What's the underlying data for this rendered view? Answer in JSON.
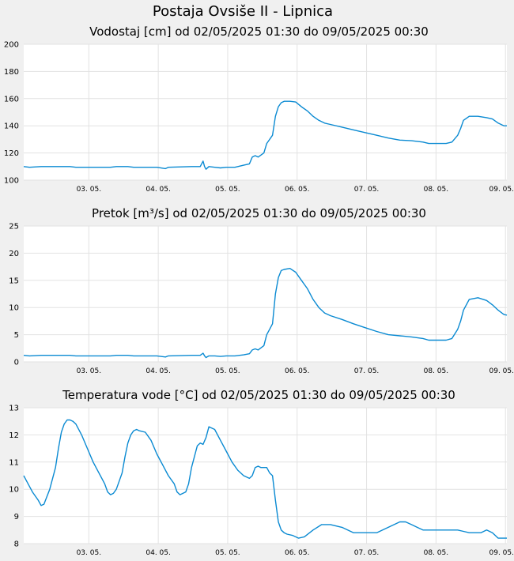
{
  "page": {
    "title": "Postaja Ovsiše II - Lipnica"
  },
  "chart_data": [
    {
      "type": "line",
      "title": "Vodostaj [cm] od 02/05/2025 01:30 do 09/05/2025 00:30",
      "xlabel": "",
      "ylabel": "",
      "ylim": [
        100,
        200
      ],
      "yticks": [
        100,
        120,
        140,
        160,
        180,
        200
      ],
      "xlim": [
        0,
        167
      ],
      "xtick_positions": [
        22.5,
        46.5,
        70.5,
        94.5,
        118.5,
        142.5,
        166.5
      ],
      "xtick_labels": [
        "03. 05.",
        "04. 05.",
        "05. 05.",
        "06. 05.",
        "07. 05.",
        "08. 05.",
        "09. 05."
      ],
      "grid": true,
      "series": [
        {
          "color": "#0a8ad2",
          "x": [
            0,
            2,
            6,
            16,
            18,
            30,
            32,
            36,
            38,
            46,
            49,
            50,
            58,
            61,
            62,
            62.5,
            63,
            64,
            66,
            68,
            70,
            73,
            76,
            78,
            79,
            80,
            81,
            83,
            84,
            85,
            86,
            87,
            88,
            89,
            90,
            92,
            94,
            96,
            98,
            100,
            102,
            104,
            106,
            110,
            114,
            118,
            122,
            126,
            130,
            134,
            138,
            140,
            143,
            146,
            148,
            150,
            151,
            152,
            154,
            157,
            160,
            162,
            164,
            166,
            167
          ],
          "y": [
            110,
            109.5,
            110,
            110,
            109.5,
            109.5,
            110,
            110,
            109.5,
            109.5,
            108.5,
            109.5,
            110,
            110,
            114,
            110,
            108,
            110,
            109.5,
            109,
            109.5,
            109.5,
            111,
            112,
            117,
            118,
            117,
            120,
            127,
            130,
            133,
            147,
            154,
            157,
            158,
            158,
            157.5,
            154,
            151,
            147,
            144,
            142,
            141,
            139,
            137,
            135,
            133,
            131,
            129.5,
            129,
            128,
            127,
            127,
            127,
            128,
            133,
            138,
            144,
            147,
            147,
            146,
            145,
            142,
            140,
            140
          ]
        }
      ]
    },
    {
      "type": "line",
      "title": "Pretok [m³/s] od 02/05/2025 01:30 do 09/05/2025 00:30",
      "xlabel": "",
      "ylabel": "",
      "ylim": [
        0,
        25
      ],
      "yticks": [
        0,
        5,
        10,
        15,
        20,
        25
      ],
      "xlim": [
        0,
        167
      ],
      "xtick_positions": [
        22.5,
        46.5,
        70.5,
        94.5,
        118.5,
        142.5,
        166.5
      ],
      "xtick_labels": [
        "03. 05.",
        "04. 05.",
        "05. 05.",
        "06. 05.",
        "07. 05.",
        "08. 05.",
        "09. 05."
      ],
      "grid": true,
      "series": [
        {
          "color": "#0a8ad2",
          "x": [
            0,
            2,
            6,
            16,
            18,
            30,
            32,
            36,
            38,
            46,
            49,
            50,
            58,
            61,
            62,
            62.5,
            63,
            64,
            66,
            68,
            70,
            73,
            76,
            78,
            79,
            80,
            81,
            83,
            84,
            85,
            86,
            87,
            88,
            89,
            90,
            92,
            94,
            96,
            98,
            100,
            102,
            104,
            106,
            110,
            114,
            118,
            122,
            126,
            130,
            134,
            138,
            140,
            143,
            146,
            148,
            150,
            151,
            152,
            154,
            157,
            160,
            162,
            164,
            166,
            167
          ],
          "y": [
            1.2,
            1.1,
            1.2,
            1.2,
            1.1,
            1.1,
            1.2,
            1.2,
            1.1,
            1.1,
            0.9,
            1.1,
            1.2,
            1.2,
            1.6,
            1.1,
            0.8,
            1.1,
            1.1,
            1.0,
            1.1,
            1.1,
            1.3,
            1.5,
            2.2,
            2.4,
            2.2,
            3.0,
            5.0,
            6.0,
            7.0,
            12.5,
            15.5,
            16.8,
            17.0,
            17.2,
            16.5,
            15.0,
            13.5,
            11.5,
            10.0,
            9.0,
            8.5,
            7.8,
            7.0,
            6.3,
            5.6,
            5.0,
            4.8,
            4.6,
            4.3,
            4.0,
            4.0,
            4.0,
            4.3,
            6.0,
            7.5,
            9.5,
            11.5,
            11.8,
            11.3,
            10.5,
            9.5,
            8.7,
            8.6
          ]
        }
      ]
    },
    {
      "type": "line",
      "title": "Temperatura vode [°C] od 02/05/2025 01:30 do 09/05/2025 00:30",
      "xlabel": "",
      "ylabel": "",
      "ylim": [
        8,
        13
      ],
      "yticks": [
        8,
        9,
        10,
        11,
        12,
        13
      ],
      "xlim": [
        0,
        167
      ],
      "xtick_positions": [
        22.5,
        46.5,
        70.5,
        94.5,
        118.5,
        142.5,
        166.5
      ],
      "xtick_labels": [
        "03. 05.",
        "04. 05.",
        "05. 05.",
        "06. 05.",
        "07. 05.",
        "08. 05.",
        "09. 05."
      ],
      "grid": true,
      "series": [
        {
          "color": "#0a8ad2",
          "x": [
            0,
            1,
            3,
            5,
            6,
            7,
            9,
            11,
            12,
            13,
            14,
            15,
            16,
            17,
            18,
            20,
            22,
            24,
            26,
            28,
            29,
            30,
            31,
            32,
            34,
            35,
            36,
            37,
            38,
            39,
            40,
            42,
            44,
            46,
            48,
            50,
            52,
            53,
            54,
            56,
            57,
            58,
            60,
            61,
            62,
            63,
            64,
            66,
            68,
            70,
            72,
            74,
            76,
            78,
            79,
            80,
            81,
            82,
            84,
            85,
            86,
            87,
            88,
            89,
            90,
            91,
            93,
            95,
            97,
            100,
            103,
            106,
            110,
            114,
            118,
            122,
            126,
            130,
            132,
            134,
            136,
            138,
            140,
            144,
            148,
            150,
            152,
            154,
            158,
            160,
            162,
            164,
            167
          ],
          "y": [
            10.5,
            10.3,
            9.9,
            9.6,
            9.4,
            9.45,
            10.0,
            10.8,
            11.5,
            12.1,
            12.4,
            12.55,
            12.55,
            12.5,
            12.4,
            12.0,
            11.5,
            11.0,
            10.6,
            10.2,
            9.9,
            9.8,
            9.85,
            10.0,
            10.6,
            11.2,
            11.7,
            12.0,
            12.15,
            12.2,
            12.15,
            12.1,
            11.8,
            11.3,
            10.9,
            10.5,
            10.2,
            9.9,
            9.8,
            9.9,
            10.2,
            10.8,
            11.6,
            11.7,
            11.65,
            11.9,
            12.3,
            12.2,
            11.8,
            11.4,
            11.0,
            10.7,
            10.5,
            10.4,
            10.5,
            10.8,
            10.85,
            10.8,
            10.8,
            10.6,
            10.5,
            9.6,
            8.8,
            8.5,
            8.4,
            8.35,
            8.3,
            8.2,
            8.25,
            8.5,
            8.7,
            8.7,
            8.6,
            8.4,
            8.4,
            8.4,
            8.6,
            8.8,
            8.8,
            8.7,
            8.6,
            8.5,
            8.5,
            8.5,
            8.5,
            8.5,
            8.45,
            8.4,
            8.4,
            8.5,
            8.4,
            8.2,
            8.2
          ]
        }
      ]
    }
  ]
}
